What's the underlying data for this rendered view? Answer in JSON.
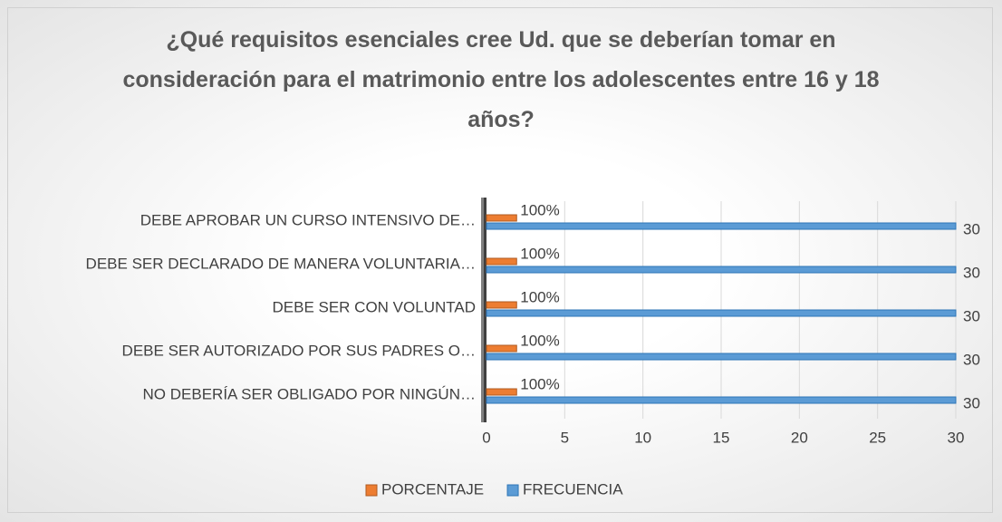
{
  "chart_data": {
    "type": "bar",
    "orientation": "horizontal",
    "title": "¿Qué requisitos esenciales cree Ud. que se deberían tomar en consideración para el matrimonio entre los adolescentes entre 16 y 18 años?",
    "categories": [
      "DEBE APROBAR UN CURSO INTENSIVO DE…",
      "DEBE SER DECLARADO DE MANERA VOLUNTARIA…",
      "DEBE SER CON VOLUNTAD",
      "DEBE SER AUTORIZADO POR SUS PADRES O…",
      "NO DEBERÍA SER OBLIGADO POR NINGÚN…"
    ],
    "series": [
      {
        "name": "PORCENTAJE",
        "color": "#ed7d31",
        "values": [
          1,
          1,
          1,
          1,
          1
        ],
        "value_labels": [
          "100%",
          "100%",
          "100%",
          "100%",
          "100%"
        ]
      },
      {
        "name": "FRECUENCIA",
        "color": "#5b9bd5",
        "values": [
          30,
          30,
          30,
          30,
          30
        ]
      }
    ],
    "xlim": [
      0,
      30
    ],
    "xticks": [
      0,
      5,
      10,
      15,
      20,
      25,
      30
    ],
    "grid": true,
    "legend": "bottom"
  }
}
